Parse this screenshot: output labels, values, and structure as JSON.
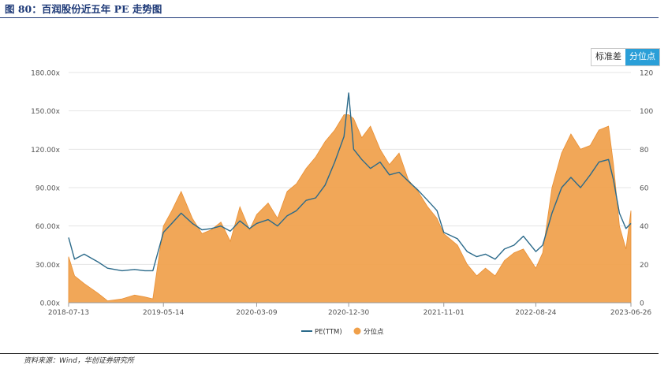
{
  "figure_title": "图 80：百润股份近五年 PE 走势图",
  "buttons": {
    "std": "标准差",
    "pct": "分位点"
  },
  "source_note": "资料来源：Wind，华创证券研究所",
  "chart_data": {
    "type": "line",
    "title": "",
    "xlabel": "",
    "ylabel": "",
    "x_tick_labels": [
      "2018-07-13",
      "2019-05-14",
      "2020-03-09",
      "2020-12-30",
      "2021-11-01",
      "2022-08-24",
      "2023-06-26"
    ],
    "x_range": [
      "2018-07-13",
      "2023-06-26"
    ],
    "y_left": {
      "ylim": [
        0,
        180
      ],
      "ticks": [
        "0.00x",
        "30.00x",
        "60.00x",
        "90.00x",
        "120.00x",
        "150.00x",
        "180.00x"
      ]
    },
    "y_right": {
      "ylim": [
        0,
        120
      ],
      "ticks": [
        "0",
        "20",
        "40",
        "60",
        "80",
        "100",
        "120"
      ]
    },
    "grid": "horizontal",
    "legend_position": "bottom-center",
    "series": [
      {
        "name": "PE(TTM)",
        "axis": "left",
        "color": "#2b6a8a",
        "x": [
          "2018-07-13",
          "2018-08-01",
          "2018-09-01",
          "2018-10-15",
          "2018-11-15",
          "2019-01-01",
          "2019-02-10",
          "2019-03-15",
          "2019-04-10",
          "2019-05-14",
          "2019-06-10",
          "2019-07-10",
          "2019-08-15",
          "2019-09-15",
          "2019-10-15",
          "2019-11-15",
          "2019-12-15",
          "2020-01-15",
          "2020-02-15",
          "2020-03-09",
          "2020-04-15",
          "2020-05-15",
          "2020-06-15",
          "2020-07-15",
          "2020-08-15",
          "2020-09-15",
          "2020-10-15",
          "2020-11-15",
          "2020-12-15",
          "2020-12-30",
          "2021-01-15",
          "2021-02-10",
          "2021-03-10",
          "2021-04-10",
          "2021-05-10",
          "2021-06-10",
          "2021-07-10",
          "2021-08-10",
          "2021-09-10",
          "2021-10-10",
          "2021-11-01",
          "2021-12-15",
          "2022-01-15",
          "2022-02-15",
          "2022-03-15",
          "2022-04-15",
          "2022-05-15",
          "2022-06-15",
          "2022-07-15",
          "2022-08-24",
          "2022-09-15",
          "2022-10-15",
          "2022-11-15",
          "2022-12-15",
          "2023-01-15",
          "2023-02-15",
          "2023-03-15",
          "2023-04-15",
          "2023-05-01",
          "2023-05-20",
          "2023-06-10",
          "2023-06-26"
        ],
        "y": [
          51,
          34,
          38,
          32,
          27,
          25,
          26,
          25,
          25,
          55,
          62,
          70,
          62,
          57,
          58,
          60,
          56,
          64,
          58,
          62,
          65,
          60,
          68,
          72,
          80,
          82,
          92,
          110,
          130,
          164,
          120,
          112,
          105,
          110,
          100,
          102,
          95,
          88,
          80,
          72,
          55,
          50,
          40,
          36,
          38,
          34,
          42,
          45,
          52,
          40,
          45,
          70,
          90,
          98,
          90,
          100,
          110,
          112,
          96,
          70,
          58,
          62
        ]
      },
      {
        "name": "分位点",
        "axis": "right",
        "color": "#f0a04a",
        "type": "area",
        "x": [
          "2018-07-13",
          "2018-08-01",
          "2018-09-01",
          "2018-10-15",
          "2018-11-15",
          "2019-01-01",
          "2019-02-10",
          "2019-03-15",
          "2019-04-10",
          "2019-05-14",
          "2019-06-10",
          "2019-07-10",
          "2019-08-15",
          "2019-09-15",
          "2019-10-15",
          "2019-11-15",
          "2019-12-15",
          "2020-01-15",
          "2020-02-15",
          "2020-03-09",
          "2020-04-15",
          "2020-05-15",
          "2020-06-15",
          "2020-07-15",
          "2020-08-15",
          "2020-09-15",
          "2020-10-15",
          "2020-11-15",
          "2020-12-15",
          "2020-12-30",
          "2021-01-15",
          "2021-02-10",
          "2021-03-10",
          "2021-04-10",
          "2021-05-10",
          "2021-06-10",
          "2021-07-10",
          "2021-08-10",
          "2021-09-10",
          "2021-10-10",
          "2021-11-01",
          "2021-12-15",
          "2022-01-15",
          "2022-02-15",
          "2022-03-15",
          "2022-04-15",
          "2022-05-15",
          "2022-06-15",
          "2022-07-15",
          "2022-08-24",
          "2022-09-15",
          "2022-10-15",
          "2022-11-15",
          "2022-12-15",
          "2023-01-15",
          "2023-02-15",
          "2023-03-15",
          "2023-04-15",
          "2023-05-01",
          "2023-05-20",
          "2023-06-10",
          "2023-06-26"
        ],
        "y": [
          24,
          14,
          10,
          5,
          1,
          2,
          4,
          3,
          2,
          40,
          48,
          58,
          44,
          36,
          38,
          42,
          32,
          50,
          38,
          46,
          52,
          44,
          58,
          62,
          70,
          76,
          84,
          90,
          98,
          98,
          96,
          86,
          92,
          80,
          72,
          78,
          64,
          58,
          50,
          44,
          36,
          30,
          20,
          14,
          18,
          14,
          22,
          26,
          28,
          18,
          26,
          60,
          78,
          88,
          80,
          82,
          90,
          92,
          72,
          40,
          28,
          48
        ]
      }
    ]
  }
}
